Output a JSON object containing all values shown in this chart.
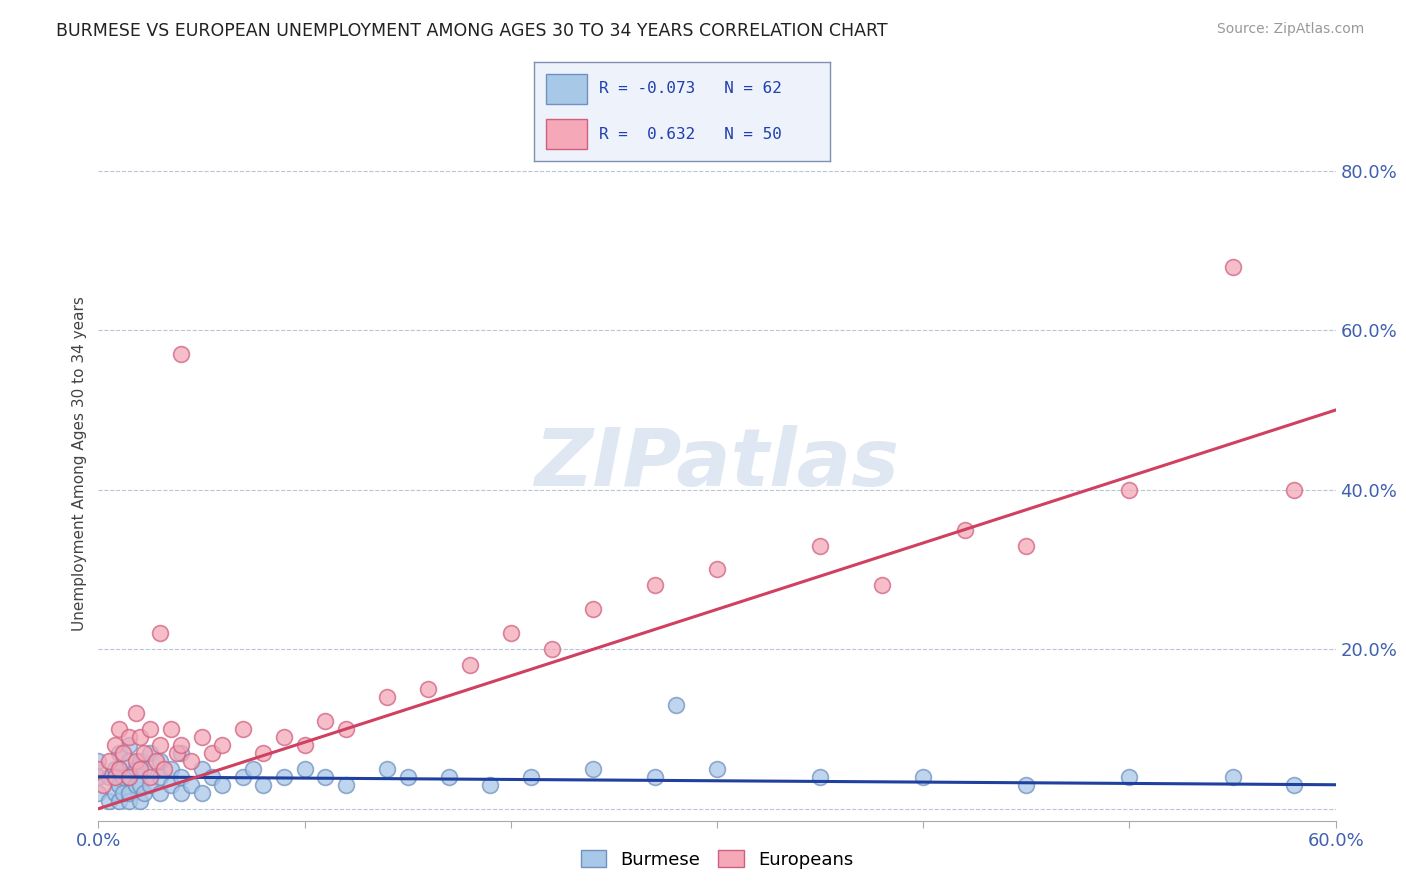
{
  "title": "BURMESE VS EUROPEAN UNEMPLOYMENT AMONG AGES 30 TO 34 YEARS CORRELATION CHART",
  "source": "Source: ZipAtlas.com",
  "ylabel": "Unemployment Among Ages 30 to 34 years",
  "x_min": 0.0,
  "x_max": 0.6,
  "y_min": -0.015,
  "y_max": 0.88,
  "x_ticks": [
    0.0,
    0.1,
    0.2,
    0.3,
    0.4,
    0.5,
    0.6
  ],
  "x_tick_labels": [
    "0.0%",
    "",
    "",
    "",
    "",
    "",
    "60.0%"
  ],
  "y_ticks": [
    0.0,
    0.2,
    0.4,
    0.6,
    0.8
  ],
  "y_tick_labels": [
    "",
    "20.0%",
    "40.0%",
    "60.0%",
    "80.0%"
  ],
  "burmese_color": "#a8c8e8",
  "european_color": "#f4a8b8",
  "burmese_edge_color": "#7090c0",
  "european_edge_color": "#d06080",
  "burmese_line_color": "#2040a0",
  "european_line_color": "#d04060",
  "legend_box_color": "#eef2fa",
  "legend_edge_color": "#8090b0",
  "burmese_R": -0.073,
  "burmese_N": 62,
  "european_R": 0.632,
  "european_N": 50,
  "watermark": "ZIPatlas",
  "burmese_line_y0": 0.04,
  "burmese_line_y1": 0.03,
  "european_line_y0": 0.0,
  "european_line_y1": 0.5,
  "burmese_scatter_x": [
    0.0,
    0.0,
    0.0,
    0.005,
    0.005,
    0.008,
    0.008,
    0.01,
    0.01,
    0.01,
    0.01,
    0.012,
    0.012,
    0.015,
    0.015,
    0.015,
    0.015,
    0.015,
    0.018,
    0.018,
    0.02,
    0.02,
    0.02,
    0.022,
    0.022,
    0.025,
    0.025,
    0.03,
    0.03,
    0.03,
    0.035,
    0.035,
    0.04,
    0.04,
    0.04,
    0.045,
    0.05,
    0.05,
    0.055,
    0.06,
    0.07,
    0.075,
    0.08,
    0.09,
    0.1,
    0.11,
    0.12,
    0.14,
    0.15,
    0.17,
    0.19,
    0.21,
    0.24,
    0.27,
    0.3,
    0.35,
    0.4,
    0.28,
    0.45,
    0.5,
    0.55,
    0.58
  ],
  "burmese_scatter_y": [
    0.02,
    0.04,
    0.06,
    0.01,
    0.04,
    0.02,
    0.05,
    0.01,
    0.03,
    0.05,
    0.07,
    0.02,
    0.04,
    0.01,
    0.02,
    0.04,
    0.06,
    0.08,
    0.03,
    0.05,
    0.01,
    0.03,
    0.06,
    0.02,
    0.05,
    0.03,
    0.07,
    0.02,
    0.04,
    0.06,
    0.03,
    0.05,
    0.02,
    0.04,
    0.07,
    0.03,
    0.02,
    0.05,
    0.04,
    0.03,
    0.04,
    0.05,
    0.03,
    0.04,
    0.05,
    0.04,
    0.03,
    0.05,
    0.04,
    0.04,
    0.03,
    0.04,
    0.05,
    0.04,
    0.05,
    0.04,
    0.04,
    0.13,
    0.03,
    0.04,
    0.04,
    0.03
  ],
  "european_scatter_x": [
    0.0,
    0.002,
    0.005,
    0.008,
    0.008,
    0.01,
    0.01,
    0.012,
    0.015,
    0.015,
    0.018,
    0.018,
    0.02,
    0.02,
    0.022,
    0.025,
    0.025,
    0.028,
    0.03,
    0.03,
    0.032,
    0.035,
    0.038,
    0.04,
    0.04,
    0.045,
    0.05,
    0.055,
    0.06,
    0.07,
    0.08,
    0.09,
    0.1,
    0.11,
    0.12,
    0.14,
    0.16,
    0.18,
    0.2,
    0.22,
    0.24,
    0.27,
    0.3,
    0.35,
    0.38,
    0.42,
    0.45,
    0.5,
    0.55,
    0.58
  ],
  "european_scatter_y": [
    0.05,
    0.03,
    0.06,
    0.04,
    0.08,
    0.05,
    0.1,
    0.07,
    0.04,
    0.09,
    0.06,
    0.12,
    0.05,
    0.09,
    0.07,
    0.04,
    0.1,
    0.06,
    0.08,
    0.22,
    0.05,
    0.1,
    0.07,
    0.08,
    0.57,
    0.06,
    0.09,
    0.07,
    0.08,
    0.1,
    0.07,
    0.09,
    0.08,
    0.11,
    0.1,
    0.14,
    0.15,
    0.18,
    0.22,
    0.2,
    0.25,
    0.28,
    0.3,
    0.33,
    0.28,
    0.35,
    0.33,
    0.4,
    0.68,
    0.4
  ]
}
